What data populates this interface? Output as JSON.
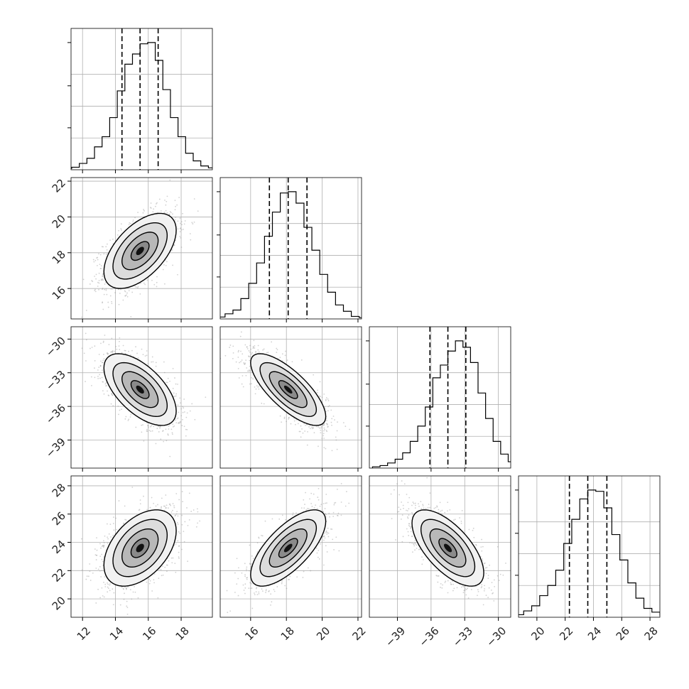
{
  "chart_data": {
    "type": "corner",
    "grid": true,
    "colors": {
      "line": "#000000",
      "scatter": "#9a9a9a",
      "grid": "#b0b0b0"
    },
    "parameters": [
      {
        "id": "p1",
        "mean": 15.5,
        "sd": 1.1,
        "range": [
          11.3,
          19.9
        ],
        "ticks": [
          12,
          14,
          16,
          18
        ],
        "tick_labels": [
          "12",
          "14",
          "16",
          "18"
        ],
        "quantiles": [
          14.4,
          15.5,
          16.6
        ]
      },
      {
        "id": "p2",
        "mean": 18.1,
        "sd": 1.05,
        "range": [
          14.3,
          22.2
        ],
        "ticks": [
          16,
          18,
          20,
          22
        ],
        "tick_labels": [
          "16",
          "18",
          "20",
          "22"
        ],
        "quantiles": [
          17.05,
          18.1,
          19.15
        ]
      },
      {
        "id": "p3",
        "mean": -34.5,
        "sd": 1.6,
        "range": [
          -41.5,
          -28.9
        ],
        "ticks": [
          -39,
          -36,
          -33,
          -30
        ],
        "tick_labels": [
          "−39",
          "−36",
          "−33",
          "−30"
        ],
        "quantiles": [
          -36.1,
          -34.5,
          -32.9
        ]
      },
      {
        "id": "p4",
        "mean": 23.6,
        "sd": 1.35,
        "range": [
          18.7,
          28.7
        ],
        "ticks": [
          20,
          22,
          24,
          26,
          28
        ],
        "tick_labels": [
          "20",
          "22",
          "24",
          "26",
          "28"
        ],
        "quantiles": [
          22.3,
          23.6,
          24.95
        ]
      }
    ],
    "correlations": [
      {
        "pair": [
          1,
          0
        ],
        "rho": 0.55
      },
      {
        "pair": [
          2,
          0
        ],
        "rho": -0.6
      },
      {
        "pair": [
          2,
          1
        ],
        "rho": -0.75
      },
      {
        "pair": [
          3,
          0
        ],
        "rho": 0.45
      },
      {
        "pair": [
          3,
          1
        ],
        "rho": 0.7
      },
      {
        "pair": [
          3,
          2
        ],
        "rho": -0.65
      }
    ],
    "histograms": [
      [
        0.01,
        0.02,
        0.05,
        0.09,
        0.18,
        0.26,
        0.41,
        0.62,
        0.83,
        0.91,
        0.99,
        1.0,
        0.86,
        0.63,
        0.41,
        0.26,
        0.13,
        0.07,
        0.03,
        0.015
      ],
      [
        0.01,
        0.015,
        0.04,
        0.07,
        0.16,
        0.28,
        0.44,
        0.65,
        0.84,
        0.99,
        1.0,
        0.91,
        0.72,
        0.54,
        0.35,
        0.21,
        0.11,
        0.06,
        0.02,
        0.01
      ],
      [
        0.01,
        0.02,
        0.04,
        0.07,
        0.12,
        0.21,
        0.33,
        0.48,
        0.71,
        0.81,
        0.92,
        1.0,
        0.95,
        0.83,
        0.59,
        0.39,
        0.21,
        0.11,
        0.05,
        0.02
      ],
      [
        0.01,
        0.02,
        0.05,
        0.09,
        0.17,
        0.25,
        0.37,
        0.58,
        0.77,
        0.93,
        1.0,
        0.99,
        0.86,
        0.65,
        0.45,
        0.27,
        0.15,
        0.07,
        0.04,
        0.015
      ]
    ],
    "contour_levels_sigma": [
      0.5,
      1.0,
      1.5,
      2.0
    ],
    "scatter_points_per_panel": 1600
  }
}
